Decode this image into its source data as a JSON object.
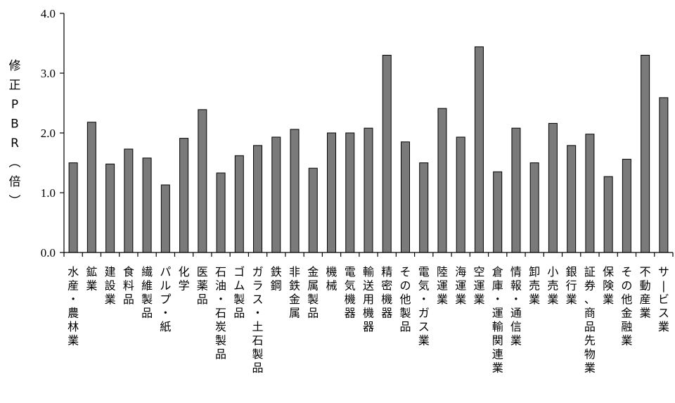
{
  "chart_data": {
    "type": "bar",
    "ylabel": "修正PBR(倍)",
    "ylim": [
      0,
      4
    ],
    "yticks": [
      "0.0",
      "1.0",
      "2.0",
      "3.0",
      "4.0"
    ],
    "grid": false,
    "categories": [
      "水産・農林業",
      "鉱業",
      "建設業",
      "食料品",
      "繊維製品",
      "パルプ・紙",
      "化学",
      "医薬品",
      "石油・石炭製品",
      "ゴム製品",
      "ガラス・土石製品",
      "鉄鋼",
      "非鉄金属",
      "金属製品",
      "機械",
      "電気機器",
      "輸送用機器",
      "精密機器",
      "その他製品",
      "電気・ガス業",
      "陸運業",
      "海運業",
      "空運業",
      "倉庫・運輸関連業",
      "情報・通信業",
      "卸売業",
      "小売業",
      "銀行業",
      "証券、商品先物業",
      "保険業",
      "その他金融業",
      "不動産業",
      "サービス業"
    ],
    "values": [
      1.5,
      2.18,
      1.48,
      1.73,
      1.58,
      1.13,
      1.91,
      2.39,
      1.33,
      1.62,
      1.79,
      1.93,
      2.06,
      1.41,
      2.0,
      2.0,
      2.08,
      3.3,
      1.85,
      1.5,
      2.41,
      1.93,
      3.44,
      1.35,
      2.08,
      1.5,
      2.16,
      1.79,
      1.98,
      1.27,
      1.56,
      3.3,
      2.59
    ]
  }
}
